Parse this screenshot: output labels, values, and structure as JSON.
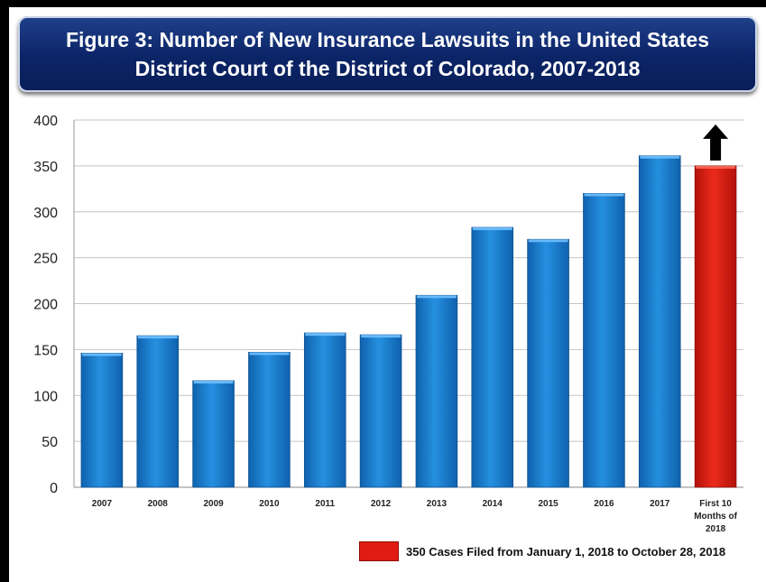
{
  "chart_data": {
    "type": "bar",
    "title_lines": [
      "Figure 3: Number of New Insurance Lawsuits in the United States",
      "District Court of the District of Colorado, 2007-2018"
    ],
    "categories": [
      [
        "2007"
      ],
      [
        "2008"
      ],
      [
        "2009"
      ],
      [
        "2010"
      ],
      [
        "2011"
      ],
      [
        "2012"
      ],
      [
        "2013"
      ],
      [
        "2014"
      ],
      [
        "2015"
      ],
      [
        "2016"
      ],
      [
        "2017"
      ],
      [
        "First 10",
        "Months of",
        "2018"
      ]
    ],
    "values": [
      146,
      165,
      116,
      147,
      168,
      166,
      209,
      283,
      270,
      320,
      361,
      350
    ],
    "bar_colors": [
      "#1a7fd0",
      "#1a7fd0",
      "#1a7fd0",
      "#1a7fd0",
      "#1a7fd0",
      "#1a7fd0",
      "#1a7fd0",
      "#1a7fd0",
      "#1a7fd0",
      "#1a7fd0",
      "#1a7fd0",
      "#e01c12"
    ],
    "ylim": [
      0,
      400
    ],
    "yticks": [
      0,
      50,
      100,
      150,
      200,
      250,
      300,
      350,
      400
    ],
    "grid": true,
    "annotation": {
      "type": "up-arrow",
      "category_index": 11,
      "color": "#000000"
    },
    "legend": {
      "position": "bottom-right",
      "label": "350 Cases Filed from January 1, 2018 to October 28, 2018",
      "color": "#e01c12"
    },
    "xlabel": "",
    "ylabel": ""
  },
  "colors": {
    "title_background": "#0b2466",
    "bar_blue": "#1a7fd0",
    "bar_red": "#e01c12"
  }
}
